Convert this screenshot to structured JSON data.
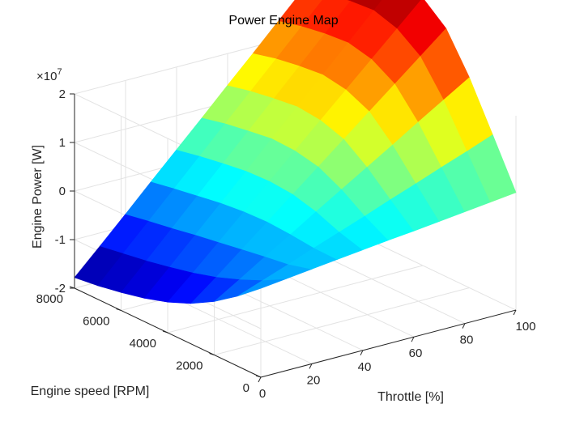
{
  "chart_data": {
    "type": "surface",
    "title": "Power Engine Map",
    "xlabel": "Throttle [%]",
    "ylabel": "Engine speed [RPM]",
    "zlabel": "Engine Power [W]",
    "z_exponent_label": "×10",
    "z_exponent_power": "7",
    "xlim": [
      0,
      100
    ],
    "ylim": [
      0,
      8000
    ],
    "zlim": [
      -2,
      2
    ],
    "z_scale": 10000000,
    "x_ticks": [
      "0",
      "20",
      "40",
      "60",
      "80",
      "100"
    ],
    "y_ticks": [
      "0",
      "2000",
      "4000",
      "6000",
      "8000"
    ],
    "z_ticks": [
      "-2",
      "-1",
      "0",
      "1",
      "2"
    ],
    "grid": true,
    "colormap": "jet",
    "throttle": [
      0,
      10,
      20,
      30,
      40,
      50,
      60,
      70,
      80,
      90,
      100
    ],
    "speed": [
      0,
      1000,
      2000,
      3000,
      4000,
      5000,
      6000,
      7000,
      8000
    ],
    "power": [
      [
        -0.17,
        -0.56,
        -0.9,
        -1.17,
        -1.37,
        -1.52,
        -1.63,
        -1.72,
        -1.78
      ],
      [
        -0.11,
        -0.37,
        -0.58,
        -0.76,
        -0.9,
        -1.01,
        -1.11,
        -1.19,
        -1.27
      ],
      [
        -0.05,
        -0.18,
        -0.25,
        -0.33,
        -0.41,
        -0.49,
        -0.58,
        -0.66,
        -0.75
      ],
      [
        0.01,
        0.02,
        0.07,
        0.1,
        0.08,
        0.03,
        -0.05,
        -0.13,
        -0.22
      ],
      [
        0.07,
        0.21,
        0.4,
        0.53,
        0.57,
        0.55,
        0.48,
        0.4,
        0.3
      ],
      [
        0.13,
        0.4,
        0.72,
        0.96,
        1.06,
        1.08,
        1.01,
        0.93,
        0.82
      ],
      [
        0.18,
        0.6,
        1.04,
        1.39,
        1.55,
        1.6,
        1.54,
        1.46,
        1.35
      ],
      [
        0.24,
        0.79,
        1.36,
        1.82,
        2.04,
        2.12,
        2.07,
        1.99,
        1.87
      ],
      [
        0.3,
        0.99,
        1.69,
        2.25,
        2.53,
        2.64,
        2.6,
        2.52,
        2.4
      ],
      [
        0.36,
        1.18,
        2.01,
        2.68,
        3.02,
        3.17,
        3.13,
        3.05,
        2.93
      ],
      [
        0.42,
        1.38,
        2.33,
        3.11,
        3.51,
        3.69,
        3.66,
        3.58,
        3.45
      ]
    ]
  }
}
